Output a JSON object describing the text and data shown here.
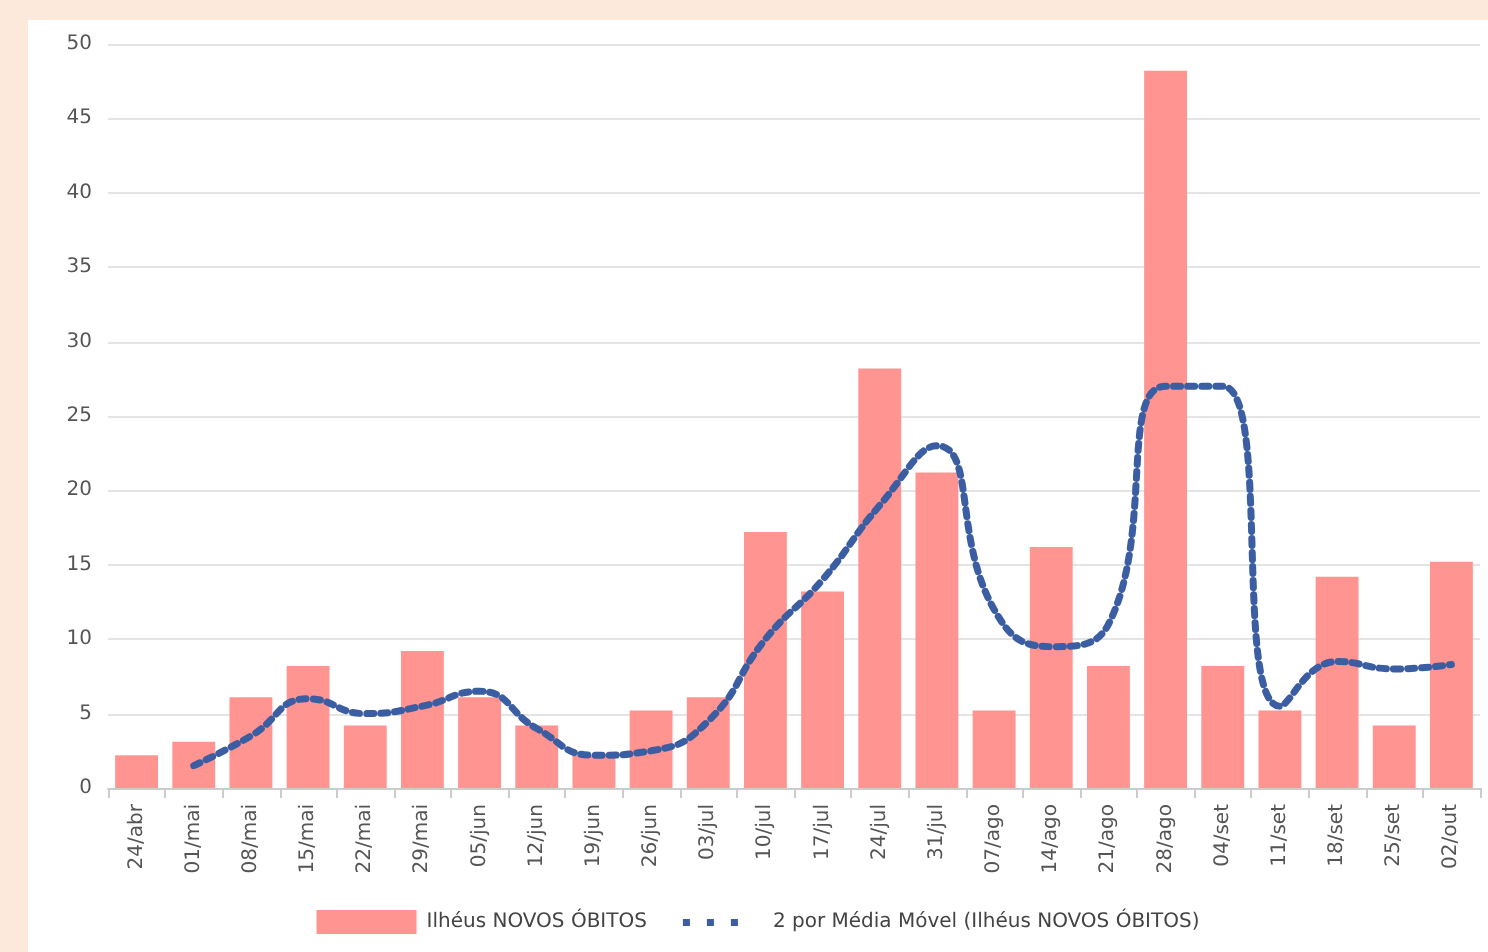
{
  "chart_data": {
    "type": "bar",
    "categories": [
      "24/abr",
      "01/mai",
      "08/mai",
      "15/mai",
      "22/mai",
      "29/mai",
      "05/jun",
      "12/jun",
      "19/jun",
      "26/jun",
      "03/jul",
      "10/jul",
      "17/jul",
      "24/jul",
      "31/jul",
      "07/ago",
      "14/ago",
      "21/ago",
      "28/ago",
      "04/set",
      "11/set",
      "18/set",
      "25/set",
      "02/out"
    ],
    "series": [
      {
        "name": "Ilhéus NOVOS ÓBITOS",
        "color": "#ff9491",
        "values": [
          2.2,
          3.1,
          6.1,
          8.2,
          4.2,
          9.2,
          6.1,
          4.2,
          2.2,
          5.2,
          6.1,
          17.2,
          13.2,
          28.2,
          21.2,
          5.2,
          16.2,
          8.2,
          48.2,
          8.2,
          5.2,
          14.2,
          4.2,
          15.2
        ]
      },
      {
        "name": "2 por Média Móvel (Ilhéus NOVOS ÓBITOS)",
        "type": "line",
        "color": "#3b5ea3",
        "line_style": "dotted",
        "values": [
          null,
          1.5,
          3.5,
          6,
          5,
          5.5,
          6.5,
          4,
          2.2,
          2.5,
          4.5,
          10,
          14,
          19,
          23,
          12,
          9.5,
          11,
          27,
          27,
          5.5,
          8.5,
          8,
          8.3
        ]
      }
    ],
    "ylim": [
      0,
      50
    ],
    "yticks": [
      0,
      5,
      10,
      15,
      20,
      25,
      30,
      35,
      40,
      45,
      50
    ],
    "grid": "y",
    "legend": "bottom",
    "marker": "none"
  }
}
